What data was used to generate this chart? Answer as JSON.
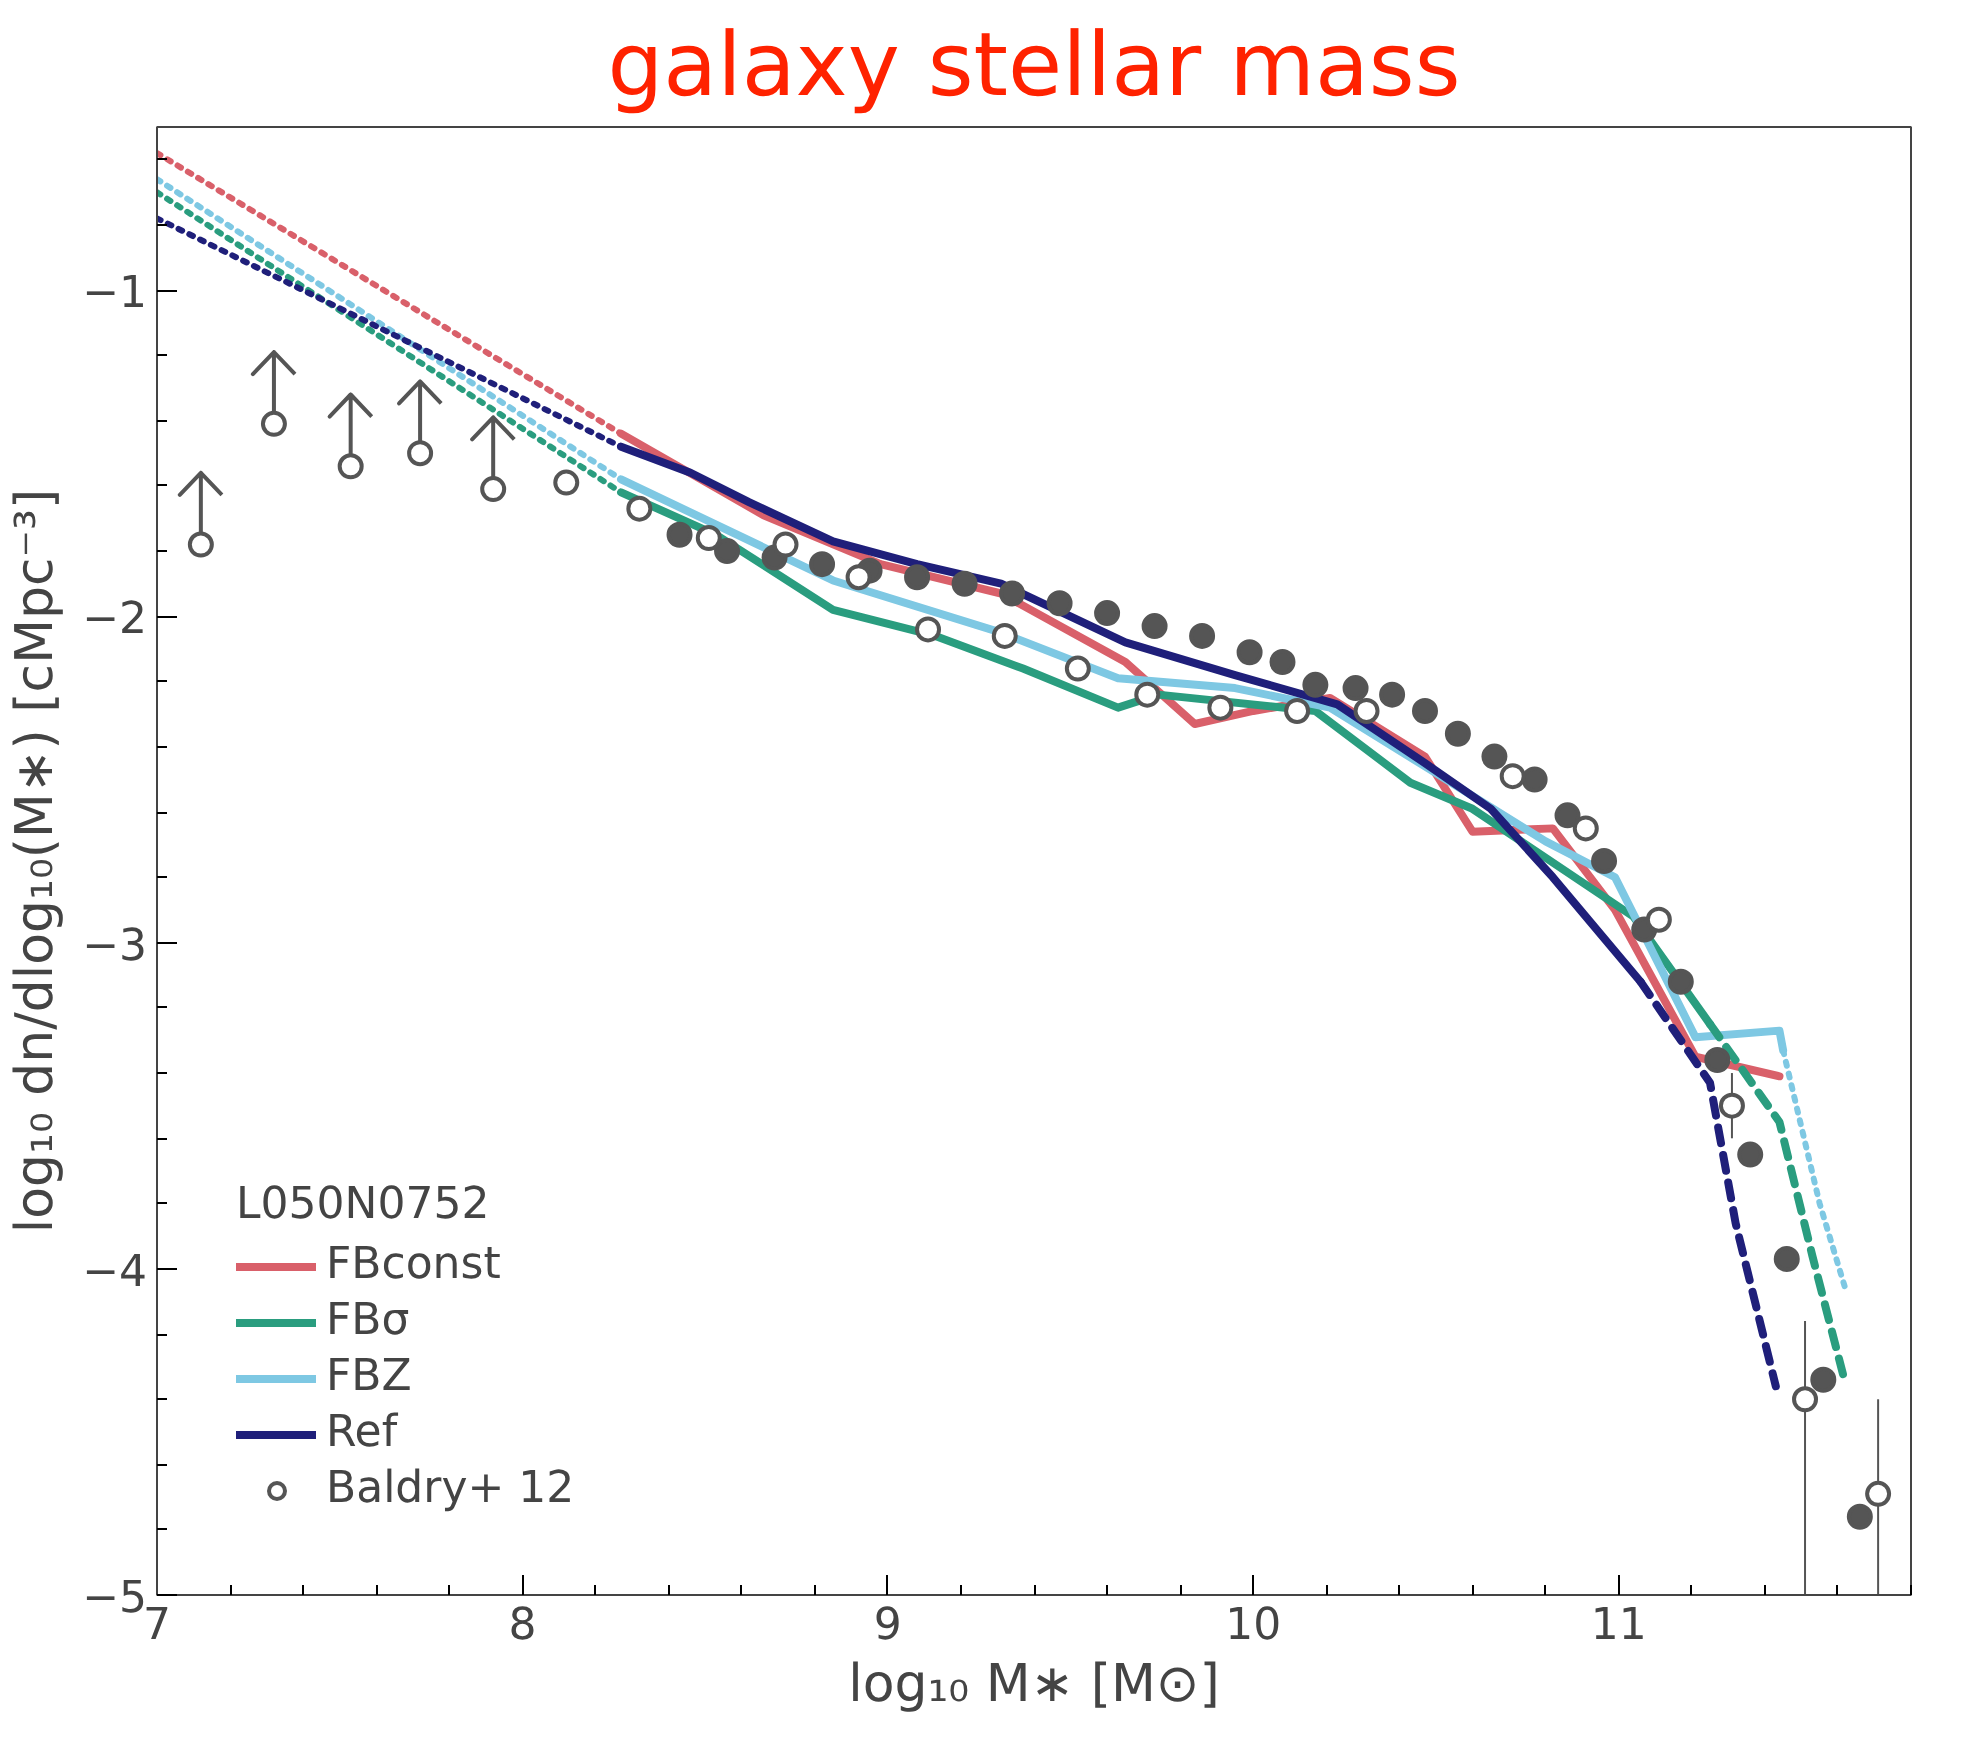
{
  "chart_data": {
    "type": "line",
    "title": "galaxy stellar mass",
    "xlabel": "log₁₀ M∗ [M⊙]",
    "ylabel": "log₁₀ dn/dlog₁₀(M∗) [cMpc⁻³]",
    "xlim": [
      7,
      11.8
    ],
    "ylim": [
      -5,
      -0.5
    ],
    "xticks": [
      7,
      8,
      9,
      10,
      11
    ],
    "yticks": [
      -5,
      -4,
      -3,
      -2,
      -1
    ],
    "grid": false,
    "legend": "bottom left",
    "legend_title": "L050N0752",
    "series": [
      {
        "name": "FBconst",
        "color": "#d9606a",
        "line_style": "solid",
        "x": [
          8.27,
          8.66,
          8.98,
          9.31,
          9.65,
          9.84,
          10.0,
          10.21,
          10.47,
          10.6,
          10.82,
          10.99,
          11.21,
          11.44
        ],
        "values": [
          -1.44,
          -1.69,
          -1.84,
          -1.93,
          -2.14,
          -2.33,
          -2.29,
          -2.25,
          -2.43,
          -2.66,
          -2.65,
          -2.9,
          -3.35,
          -3.41
        ]
      },
      {
        "name": "FBσ",
        "color": "#2a9d7f",
        "line_style": "solid",
        "x": [
          8.27,
          8.53,
          8.85,
          9.13,
          9.37,
          9.63,
          9.74,
          10.17,
          10.43,
          10.6,
          11.04,
          11.25
        ],
        "values": [
          -1.62,
          -1.75,
          -1.98,
          -2.06,
          -2.16,
          -2.28,
          -2.24,
          -2.29,
          -2.51,
          -2.59,
          -2.92,
          -3.25
        ]
      },
      {
        "name": "FBZ",
        "color": "#7ec8e3",
        "line_style": "solid",
        "x": [
          8.27,
          8.85,
          9.31,
          9.63,
          9.95,
          10.21,
          10.47,
          10.8,
          10.99,
          11.21,
          11.44,
          11.45
        ],
        "values": [
          -1.58,
          -1.89,
          -2.05,
          -2.19,
          -2.22,
          -2.28,
          -2.46,
          -2.69,
          -2.8,
          -3.29,
          -3.27,
          -3.33
        ]
      },
      {
        "name": "Ref",
        "color": "#1f1f7a",
        "line_style": "solid",
        "x": [
          8.27,
          8.46,
          8.62,
          8.85,
          9.08,
          9.31,
          9.65,
          9.95,
          10.23,
          10.47,
          10.65,
          10.82,
          11.06
        ],
        "values": [
          -1.48,
          -1.56,
          -1.65,
          -1.77,
          -1.84,
          -1.9,
          -2.08,
          -2.18,
          -2.27,
          -2.45,
          -2.59,
          -2.8,
          -3.12
        ]
      },
      {
        "color": "#d9606a",
        "line_style": "dotted",
        "x": [
          7,
          8.27
        ],
        "values": [
          -0.58,
          -1.44
        ]
      },
      {
        "color": "#2a9d7f",
        "line_style": "dotted",
        "x": [
          7,
          8.27
        ],
        "values": [
          -0.7,
          -1.62
        ]
      },
      {
        "color": "#7ec8e3",
        "line_style": "dotted",
        "x": [
          7,
          8.27
        ],
        "values": [
          -0.66,
          -1.58
        ]
      },
      {
        "color": "#1f1f7a",
        "line_style": "dotted",
        "x": [
          7,
          8.27
        ],
        "values": [
          -0.78,
          -1.48
        ]
      },
      {
        "color": "#2a9d7f",
        "line_style": "dashed",
        "x": [
          11.25,
          11.44,
          11.53,
          11.62
        ],
        "values": [
          -3.25,
          -3.55,
          -3.96,
          -4.35
        ]
      },
      {
        "color": "#7ec8e3",
        "line_style": "dotted",
        "x": [
          11.45,
          11.55,
          11.62
        ],
        "values": [
          -3.33,
          -3.8,
          -4.06
        ]
      },
      {
        "color": "#1f1f7a",
        "line_style": "dashed",
        "x": [
          11.06,
          11.25,
          11.32,
          11.43
        ],
        "values": [
          -3.12,
          -3.43,
          -3.86,
          -4.36
        ]
      },
      {
        "type": "scatter",
        "marker": "circle",
        "color": "#555555",
        "x": [
          8.43,
          8.56,
          8.69,
          8.82,
          8.95,
          9.08,
          9.21,
          9.34,
          9.47,
          9.6,
          9.73,
          9.86,
          9.99,
          10.08,
          10.17,
          10.28,
          10.38,
          10.47,
          10.56,
          10.66,
          10.77,
          10.86,
          10.96,
          11.07,
          11.17,
          11.27,
          11.36,
          11.46,
          11.56,
          11.66
        ],
        "values": [
          -1.75,
          -1.8,
          -1.82,
          -1.84,
          -1.86,
          -1.88,
          -1.9,
          -1.93,
          -1.96,
          -1.99,
          -2.03,
          -2.06,
          -2.11,
          -2.14,
          -2.21,
          -2.22,
          -2.24,
          -2.29,
          -2.36,
          -2.43,
          -2.5,
          -2.61,
          -2.75,
          -2.96,
          -3.12,
          -3.36,
          -3.65,
          -3.97,
          -4.34,
          -4.76
        ]
      },
      {
        "type": "scatter",
        "marker": "circle_open",
        "name": "Baldry+ 12",
        "color": "#555555",
        "x": [
          7.12,
          7.32,
          7.53,
          7.72,
          7.92,
          8.12,
          8.32,
          8.51,
          8.72,
          8.92,
          9.11,
          9.32,
          9.52,
          9.71,
          9.91,
          10.12,
          10.31,
          10.71,
          10.91,
          11.11,
          11.31,
          11.51,
          11.71
        ],
        "values": [
          -1.78,
          -1.41,
          -1.54,
          -1.5,
          -1.61,
          -1.59,
          -1.67,
          -1.76,
          -1.78,
          -1.88,
          -2.04,
          -2.06,
          -2.16,
          -2.24,
          -2.28,
          -2.29,
          -2.29,
          -2.49,
          -2.65,
          -2.93,
          -3.5,
          -4.4,
          -4.69
        ],
        "errors": [
          [
            -1.78,
            -1.56
          ],
          [
            -1.41,
            -1.19
          ],
          [
            -1.54,
            -1.32
          ],
          [
            -1.5,
            -1.28
          ],
          [
            -1.61,
            -1.39
          ],
          null,
          null,
          null,
          null,
          null,
          null,
          null,
          null,
          null,
          null,
          null,
          null,
          null,
          null,
          null,
          [
            -3.6,
            -3.4
          ],
          [
            -5,
            -4.16
          ],
          [
            -5,
            -4.4
          ]
        ]
      }
    ]
  }
}
